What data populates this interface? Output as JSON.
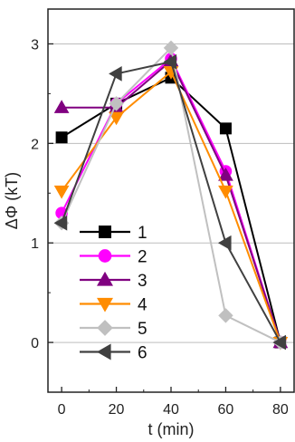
{
  "chart_data": {
    "type": "line",
    "title": "",
    "xlabel": "t (min)",
    "ylabel": "ΔΦ (kT)",
    "x": [
      0,
      20,
      40,
      60,
      80
    ],
    "xticks": [
      0,
      20,
      40,
      60,
      80
    ],
    "yticks": [
      0,
      1,
      2,
      3
    ],
    "xlim": [
      -5,
      85
    ],
    "ylim": [
      -0.5,
      3.35
    ],
    "grid": "horizontal",
    "legend_position": "bottom-left",
    "series": [
      {
        "name": "1",
        "color": "#000000",
        "marker": "square",
        "values": [
          2.06,
          2.4,
          2.66,
          2.15,
          0.0
        ]
      },
      {
        "name": "2",
        "color": "#ff00ff",
        "marker": "circle",
        "values": [
          1.3,
          2.4,
          2.85,
          1.72,
          0.0
        ]
      },
      {
        "name": "3",
        "color": "#800080",
        "marker": "triangle-up",
        "values": [
          2.36,
          2.36,
          2.83,
          1.68,
          0.0
        ]
      },
      {
        "name": "4",
        "color": "#ff8c00",
        "marker": "triangle-down",
        "values": [
          1.52,
          2.26,
          2.72,
          1.52,
          0.0
        ]
      },
      {
        "name": "5",
        "color": "#c0c0c0",
        "marker": "diamond",
        "values": [
          1.2,
          2.4,
          2.96,
          0.27,
          0.0
        ]
      },
      {
        "name": "6",
        "color": "#404040",
        "marker": "triangle-left",
        "values": [
          1.2,
          2.7,
          2.82,
          1.0,
          0.0
        ]
      }
    ]
  }
}
